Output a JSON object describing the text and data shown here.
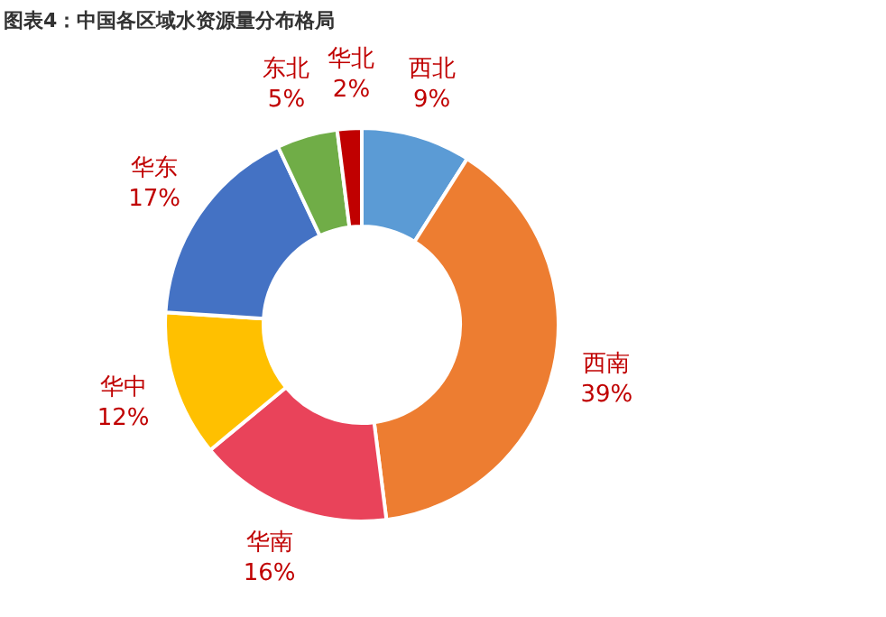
{
  "chart_data": {
    "type": "donut",
    "title": "图表4：中国各区域水资源量分布格局",
    "categories": [
      "西北",
      "西南",
      "华南",
      "华中",
      "华东",
      "东北",
      "华北"
    ],
    "values": [
      9,
      39,
      16,
      12,
      17,
      5,
      2
    ],
    "value_labels": [
      "9%",
      "39%",
      "16%",
      "12%",
      "17%",
      "5%",
      "2%"
    ],
    "colors": [
      "#5b9bd5",
      "#ed7d31",
      "#e9435a",
      "#ffc000",
      "#4472c4",
      "#70ad47",
      "#c00000"
    ],
    "legend": false
  }
}
